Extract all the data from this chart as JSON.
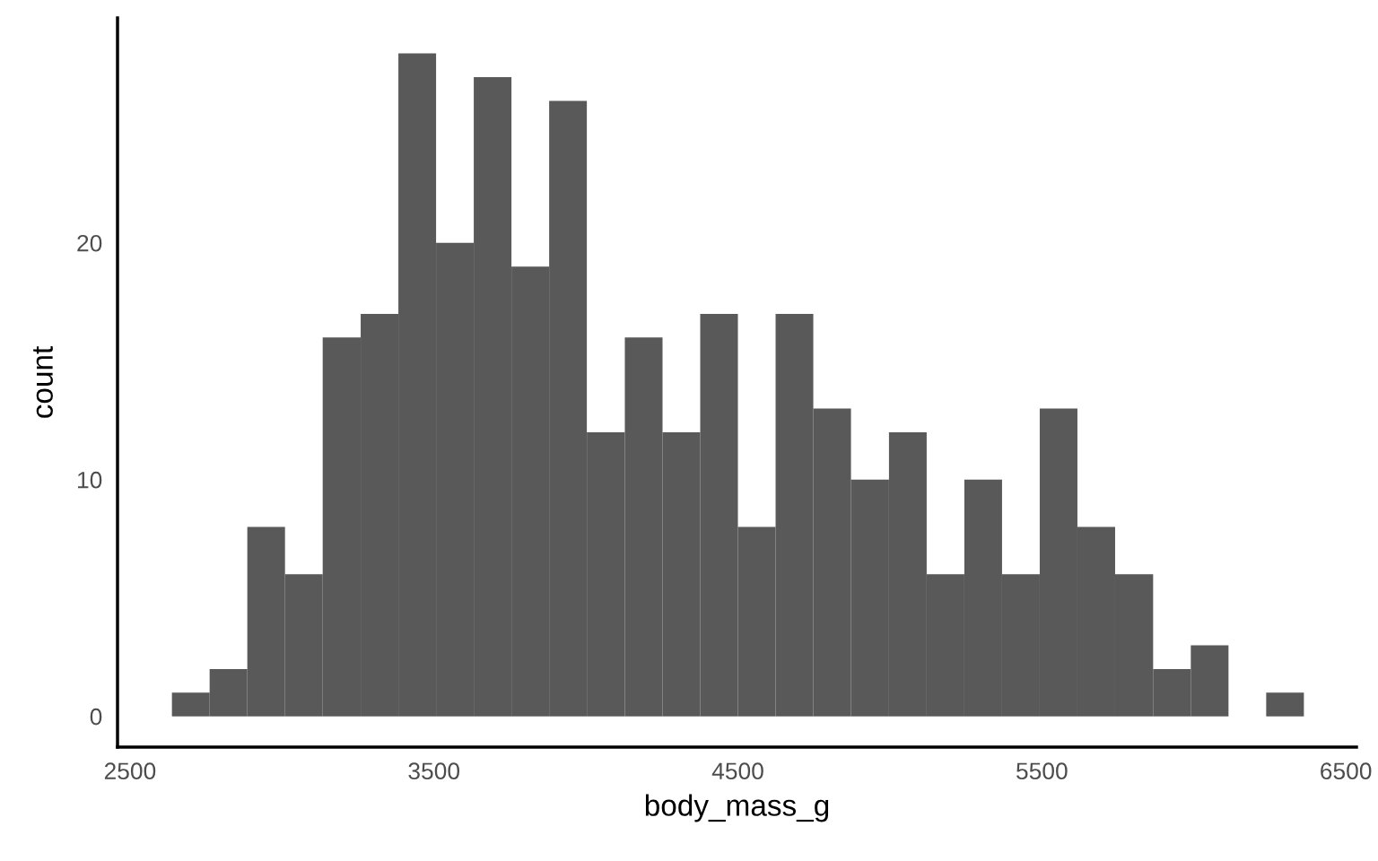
{
  "chart_data": {
    "type": "histogram",
    "xlabel": "body_mass_g",
    "ylabel": "count",
    "color": "#595959",
    "bins": [
      2638,
      2762,
      2886,
      3010,
      3134,
      3259,
      3383,
      3507,
      3631,
      3755,
      3879,
      4003,
      4128,
      4252,
      4376,
      4500,
      4624,
      4748,
      4872,
      4997,
      5121,
      5245,
      5369,
      5493,
      5617,
      5741,
      5866,
      5990,
      6114,
      6238,
      6362
    ],
    "values": [
      1,
      2,
      8,
      6,
      16,
      17,
      28,
      20,
      27,
      19,
      26,
      12,
      16,
      12,
      17,
      8,
      17,
      13,
      10,
      12,
      6,
      10,
      6,
      13,
      8,
      6,
      2,
      3,
      0,
      1
    ],
    "xlim": [
      2459,
      6535
    ],
    "xticks": [
      2500,
      3500,
      4500,
      5500,
      6500
    ],
    "ylim": [
      -1.3,
      29.5
    ],
    "yticks": [
      0,
      10,
      20
    ],
    "grid": false
  }
}
